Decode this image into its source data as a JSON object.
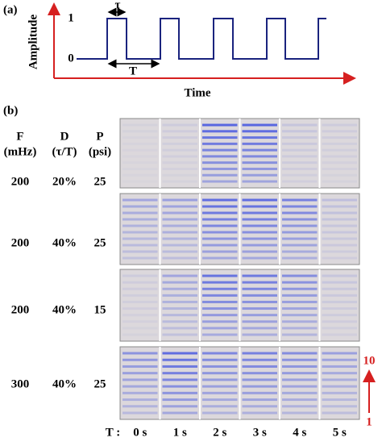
{
  "panel_a": {
    "label": "(a)",
    "y_axis_label": "Amplitude",
    "x_axis_label": "Time",
    "level_high": "1",
    "level_low": "0",
    "tau_label": "τ",
    "period_label": "T"
  },
  "panel_b": {
    "label": "(b)",
    "headers": [
      {
        "symbol": "F",
        "unit": "(mHz)"
      },
      {
        "symbol": "D",
        "unit": "(τ/T)"
      },
      {
        "symbol": "P",
        "unit": "(psi)"
      }
    ],
    "rows": [
      [
        "200",
        "20%",
        "25"
      ],
      [
        "200",
        "40%",
        "25"
      ],
      [
        "200",
        "40%",
        "15"
      ],
      [
        "300",
        "40%",
        "25"
      ]
    ],
    "time_prefix": "T :",
    "time_labels": [
      "0 s",
      "1 s",
      "2 s",
      "3 s",
      "4 s",
      "5 s"
    ],
    "scale_top": "10",
    "scale_bottom": "1"
  }
}
